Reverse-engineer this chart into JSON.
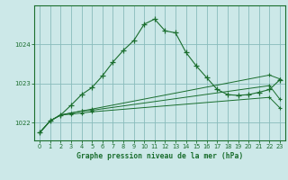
{
  "bg_color": "#cce8e8",
  "grid_color": "#88bbbb",
  "line_color": "#1a6e2e",
  "title": "Graphe pression niveau de la mer (hPa)",
  "xlim": [
    -0.5,
    23.5
  ],
  "ylim": [
    1021.55,
    1025.0
  ],
  "yticks": [
    1022,
    1023,
    1024
  ],
  "xticks": [
    0,
    1,
    2,
    3,
    4,
    5,
    6,
    7,
    8,
    9,
    10,
    11,
    12,
    13,
    14,
    15,
    16,
    17,
    18,
    19,
    20,
    21,
    22,
    23
  ],
  "series1_x": [
    0,
    1,
    2,
    3,
    4,
    5,
    6,
    7,
    8,
    9,
    10,
    11,
    12,
    13,
    14,
    15,
    16,
    17,
    18,
    19,
    20,
    21,
    22,
    23
  ],
  "series1_y": [
    1021.75,
    1022.05,
    1022.2,
    1022.45,
    1022.72,
    1022.9,
    1023.2,
    1023.55,
    1023.85,
    1024.1,
    1024.52,
    1024.65,
    1024.35,
    1024.3,
    1023.8,
    1023.45,
    1023.15,
    1022.85,
    1022.72,
    1022.7,
    1022.72,
    1022.78,
    1022.85,
    1023.1
  ],
  "series2_x": [
    0,
    1,
    2,
    3,
    4,
    5,
    22,
    23
  ],
  "series2_y": [
    1021.75,
    1022.05,
    1022.2,
    1022.25,
    1022.3,
    1022.35,
    1023.22,
    1023.12
  ],
  "series3_x": [
    0,
    1,
    2,
    3,
    4,
    5,
    22,
    23
  ],
  "series3_y": [
    1021.75,
    1022.05,
    1022.2,
    1022.25,
    1022.3,
    1022.32,
    1022.95,
    1022.6
  ],
  "series4_x": [
    0,
    1,
    2,
    3,
    4,
    5,
    22,
    23
  ],
  "series4_y": [
    1021.75,
    1022.05,
    1022.2,
    1022.22,
    1022.25,
    1022.28,
    1022.65,
    1022.38
  ]
}
